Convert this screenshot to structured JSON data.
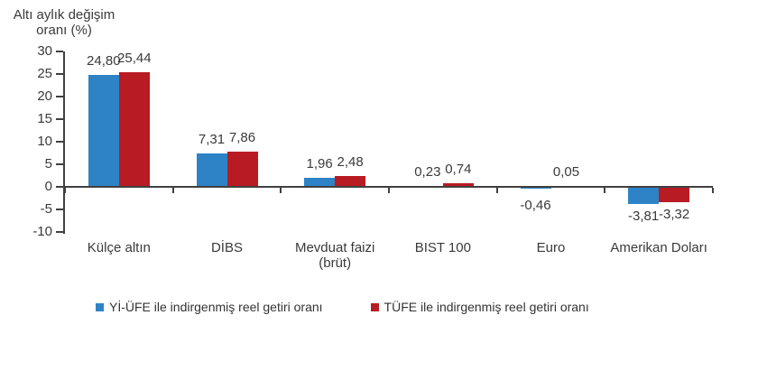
{
  "chart_data": {
    "type": "bar",
    "title": "Altı aylık değişim oranı (%)",
    "y_axis_title_lines": [
      "Altı aylık değişim",
      "oranı (%)"
    ],
    "xlabel": "",
    "ylabel": "Altı aylık değişim oranı (%)",
    "categories": [
      "Külçe altın",
      "DİBS",
      "Mevduat faizi (brüt)",
      "BIST 100",
      "Euro",
      "Amerikan Doları"
    ],
    "category_label_lines": [
      [
        "Külçe altın"
      ],
      [
        "DİBS"
      ],
      [
        "Mevduat faizi",
        "(brüt)"
      ],
      [
        "BIST 100"
      ],
      [
        "Euro"
      ],
      [
        "Amerikan Doları"
      ]
    ],
    "series": [
      {
        "name": "Yİ-ÜFE ile indirgenmiş reel getiri oranı",
        "color": "#2E83C6",
        "values": [
          24.8,
          7.31,
          1.96,
          0.23,
          -0.46,
          -3.81
        ],
        "value_labels": [
          "24,80",
          "7,31",
          "1,96",
          "0,23",
          "-0,46",
          "-3,81"
        ]
      },
      {
        "name": "TÜFE ile indirgenmiş reel getiri oranı",
        "color": "#B81B22",
        "values": [
          25.44,
          7.86,
          2.48,
          0.74,
          0.05,
          -3.32
        ],
        "value_labels": [
          "25,44",
          "7,86",
          "2,48",
          "0,74",
          "0,05",
          "-3,32"
        ]
      }
    ],
    "ylim": [
      -10,
      30
    ],
    "y_ticks": [
      30,
      25,
      20,
      15,
      10,
      5,
      0,
      -5,
      -10
    ],
    "grid": false,
    "legend_position": "bottom",
    "colors": {
      "axis": "#404040",
      "text": "#3a3a3a",
      "background": "#ffffff"
    }
  }
}
